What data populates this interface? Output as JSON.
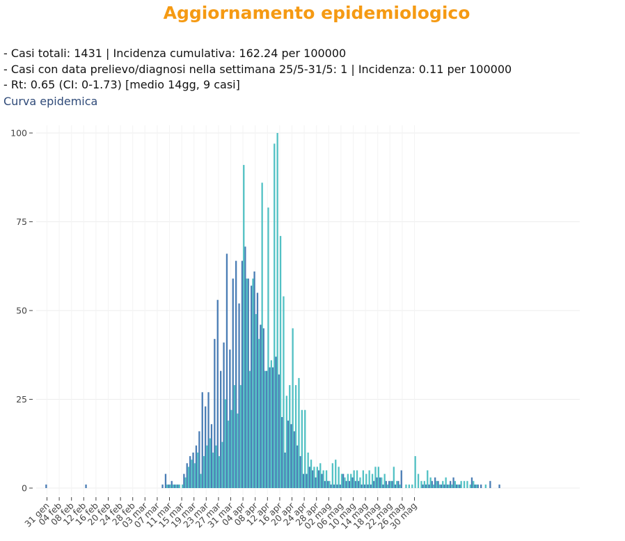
{
  "header": {
    "title": "Aggiornamento epidemiologico"
  },
  "stats": {
    "line1": "- Casi totali: 1431 | Incidenza cumulativa: 162.24 per 100000",
    "line2": "- Casi con data prelievo/diagnosi nella settimana 25/5-31/5: 1 | Incidenza: 0.11 per 100000",
    "line3": "- Rt: 0.65 (CI: 0-1.73) [medio 14gg, 9 casi]"
  },
  "section": {
    "subtitle": "Curva epidemica"
  },
  "chart_data": {
    "type": "bar",
    "title": "",
    "xlabel": "",
    "ylabel": "",
    "ylim": [
      0,
      105
    ],
    "y_ticks": [
      0,
      25,
      50,
      75,
      100
    ],
    "x_tick_labels": [
      "31 gen",
      "04 feb",
      "08 feb",
      "12 feb",
      "16 feb",
      "20 feb",
      "24 feb",
      "28 feb",
      "03 mar",
      "07 mar",
      "11 mar",
      "15 mar",
      "19 mar",
      "23 mar",
      "27 mar",
      "31 mar",
      "04 apr",
      "08 apr",
      "12 apr",
      "16 apr",
      "20 apr",
      "24 apr",
      "28 apr",
      "02 mag",
      "06 mag",
      "10 mag",
      "14 mag",
      "18 mag",
      "22 mag",
      "26 mag",
      "30 mag"
    ],
    "grid": true,
    "legend": "none",
    "colors": {
      "series_a": "#4a7db5",
      "series_b": "#52c1c4"
    },
    "series": [
      {
        "values": [
          1,
          0,
          0,
          0,
          0,
          0,
          0,
          0,
          0,
          0,
          0,
          0,
          0,
          1,
          0,
          0,
          0,
          0,
          0,
          0,
          0,
          0,
          0,
          0,
          0,
          0,
          0,
          0,
          0,
          0,
          0,
          0,
          0,
          0,
          0,
          0,
          0,
          0,
          1,
          4,
          1,
          2,
          1,
          1,
          0,
          4,
          7,
          9,
          10,
          12,
          16,
          27,
          23,
          27,
          18,
          42,
          53,
          33,
          41,
          66,
          39,
          59,
          64,
          52,
          64,
          68,
          59,
          57,
          61,
          55,
          46,
          45,
          33,
          34,
          34,
          37,
          32,
          20,
          10,
          19,
          18,
          16,
          12,
          9,
          4,
          4,
          6,
          5,
          3,
          5,
          4,
          2,
          2,
          1,
          1,
          1,
          1,
          4,
          2,
          2,
          3,
          2,
          2,
          1,
          1,
          1,
          1,
          2,
          3,
          3,
          1,
          2,
          2,
          2,
          1,
          2,
          5,
          0,
          0,
          0,
          0,
          0,
          0,
          1,
          1,
          1,
          2,
          3,
          2,
          1,
          1,
          1,
          2,
          3,
          1,
          1,
          0,
          0,
          0,
          3,
          1,
          1,
          1,
          0,
          0,
          2,
          0,
          0,
          1,
          0,
          0,
          0,
          0,
          0,
          0,
          0,
          0,
          0,
          0,
          0,
          0,
          0,
          0,
          0,
          0,
          0,
          0,
          0,
          0,
          0,
          0,
          0,
          0,
          0,
          0,
          0,
          0,
          0,
          0,
          0,
          0,
          0,
          0,
          0,
          0,
          0,
          0,
          0,
          0,
          0,
          0,
          0,
          0,
          0,
          0,
          0,
          0,
          0,
          0
        ]
      },
      {
        "values": [
          0,
          0,
          0,
          0,
          0,
          0,
          0,
          0,
          0,
          0,
          0,
          0,
          0,
          0,
          0,
          0,
          0,
          0,
          0,
          0,
          0,
          0,
          0,
          0,
          0,
          0,
          0,
          0,
          0,
          0,
          0,
          0,
          0,
          0,
          0,
          0,
          0,
          0,
          0,
          1,
          1,
          1,
          1,
          1,
          1,
          3,
          6,
          8,
          7,
          10,
          4,
          9,
          12,
          14,
          10,
          12,
          9,
          13,
          25,
          19,
          22,
          29,
          21,
          29,
          91,
          59,
          33,
          59,
          49,
          42,
          86,
          33,
          79,
          36,
          97,
          100,
          71,
          54,
          26,
          29,
          45,
          29,
          31,
          22,
          22,
          10,
          8,
          6,
          6,
          7,
          5,
          5,
          2,
          7,
          8,
          6,
          4,
          3,
          4,
          4,
          5,
          5,
          3,
          5,
          4,
          5,
          4,
          6,
          6,
          3,
          4,
          1,
          2,
          6,
          2,
          1,
          0,
          1,
          1,
          1,
          9,
          4,
          2,
          2,
          5,
          3,
          1,
          2,
          1,
          2,
          3,
          1,
          1,
          2,
          1,
          2,
          2,
          2,
          1,
          2,
          1,
          0,
          0,
          1,
          0,
          0,
          0,
          0,
          0,
          0,
          0,
          0,
          0,
          0,
          0,
          0,
          0,
          0,
          0,
          0,
          0,
          0,
          0,
          0,
          0,
          0,
          0,
          0,
          0,
          0,
          0,
          0,
          0,
          0,
          0,
          0,
          0,
          0,
          0,
          0,
          0,
          0,
          0,
          0,
          0,
          0,
          0,
          0,
          0,
          0,
          0,
          0,
          0,
          0,
          0,
          0,
          0,
          0,
          0,
          0,
          0
        ]
      }
    ]
  }
}
